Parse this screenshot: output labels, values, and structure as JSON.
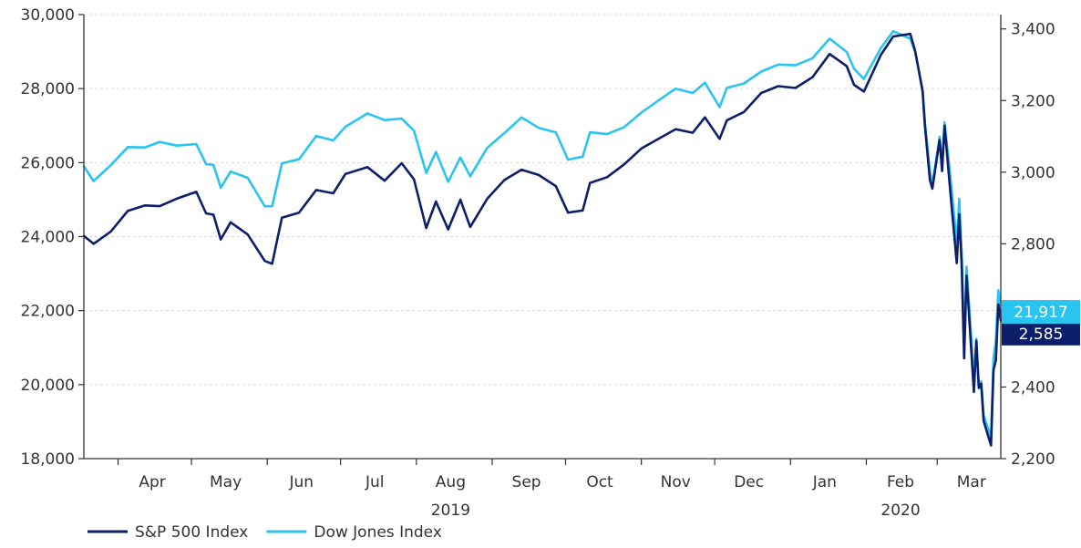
{
  "chart_data": {
    "type": "line",
    "title": "",
    "xlabel": "",
    "left_ylabel": "",
    "right_ylabel": "",
    "x_date_range": [
      "2019-03-18",
      "2020-03-27"
    ],
    "left_axis": {
      "series": "Dow Jones Index",
      "ylim": [
        18000,
        30000
      ],
      "ticks": [
        18000,
        20000,
        22000,
        24000,
        26000,
        28000,
        30000
      ],
      "tick_labels": [
        "18,000",
        "20,000",
        "22,000",
        "24,000",
        "26,000",
        "28,000",
        "30,000"
      ]
    },
    "right_axis": {
      "series": "S&P 500 Index",
      "ylim": [
        2200,
        3440
      ],
      "ticks": [
        2200,
        2400,
        2600,
        2800,
        3000,
        3200,
        3400
      ],
      "tick_labels": [
        "2,200",
        "2,400",
        "2,600",
        "2,800",
        "3,000",
        "3,200",
        "3,400"
      ]
    },
    "month_labels": [
      {
        "label": "Apr",
        "date": "2019-04-15"
      },
      {
        "label": "May",
        "date": "2019-05-15"
      },
      {
        "label": "Jun",
        "date": "2019-06-15"
      },
      {
        "label": "Jul",
        "date": "2019-07-15"
      },
      {
        "label": "Aug",
        "date": "2019-08-15"
      },
      {
        "label": "Sep",
        "date": "2019-09-15"
      },
      {
        "label": "Oct",
        "date": "2019-10-15"
      },
      {
        "label": "Nov",
        "date": "2019-11-15"
      },
      {
        "label": "Dec",
        "date": "2019-12-15"
      },
      {
        "label": "Jan",
        "date": "2020-01-15"
      },
      {
        "label": "Feb",
        "date": "2020-02-15"
      },
      {
        "label": "Mar",
        "date": "2020-03-15"
      }
    ],
    "month_boundaries": [
      "2019-04-01",
      "2019-05-01",
      "2019-06-01",
      "2019-07-01",
      "2019-08-01",
      "2019-09-01",
      "2019-10-01",
      "2019-11-01",
      "2019-12-01",
      "2020-01-01",
      "2020-02-01",
      "2020-03-01"
    ],
    "year_labels": [
      {
        "label": "2019",
        "date": "2019-08-15"
      },
      {
        "label": "2020",
        "date": "2020-02-15"
      }
    ],
    "grid": true,
    "legend_position": "bottom-left",
    "series": [
      {
        "name": "S&P 500 Index",
        "axis": "right",
        "color": "#0d1f6b",
        "end_label": "2,585",
        "points": [
          [
            "2019-03-18",
            2822
          ],
          [
            "2019-03-22",
            2800
          ],
          [
            "2019-03-29",
            2834
          ],
          [
            "2019-04-05",
            2892
          ],
          [
            "2019-04-12",
            2907
          ],
          [
            "2019-04-18",
            2905
          ],
          [
            "2019-04-25",
            2926
          ],
          [
            "2019-05-03",
            2945
          ],
          [
            "2019-05-07",
            2885
          ],
          [
            "2019-05-10",
            2881
          ],
          [
            "2019-05-13",
            2812
          ],
          [
            "2019-05-17",
            2860
          ],
          [
            "2019-05-24",
            2826
          ],
          [
            "2019-05-31",
            2752
          ],
          [
            "2019-06-03",
            2744
          ],
          [
            "2019-06-07",
            2873
          ],
          [
            "2019-06-14",
            2887
          ],
          [
            "2019-06-21",
            2950
          ],
          [
            "2019-06-28",
            2941
          ],
          [
            "2019-07-03",
            2995
          ],
          [
            "2019-07-12",
            3014
          ],
          [
            "2019-07-19",
            2976
          ],
          [
            "2019-07-26",
            3025
          ],
          [
            "2019-07-31",
            2980
          ],
          [
            "2019-08-05",
            2844
          ],
          [
            "2019-08-09",
            2918
          ],
          [
            "2019-08-14",
            2840
          ],
          [
            "2019-08-19",
            2923
          ],
          [
            "2019-08-23",
            2847
          ],
          [
            "2019-08-30",
            2926
          ],
          [
            "2019-09-06",
            2978
          ],
          [
            "2019-09-13",
            3007
          ],
          [
            "2019-09-20",
            2992
          ],
          [
            "2019-09-27",
            2961
          ],
          [
            "2019-10-02",
            2887
          ],
          [
            "2019-10-08",
            2893
          ],
          [
            "2019-10-11",
            2970
          ],
          [
            "2019-10-18",
            2986
          ],
          [
            "2019-10-25",
            3022
          ],
          [
            "2019-11-01",
            3066
          ],
          [
            "2019-11-08",
            3093
          ],
          [
            "2019-11-15",
            3120
          ],
          [
            "2019-11-22",
            3110
          ],
          [
            "2019-11-27",
            3153
          ],
          [
            "2019-12-03",
            3093
          ],
          [
            "2019-12-06",
            3145
          ],
          [
            "2019-12-13",
            3168
          ],
          [
            "2019-12-20",
            3221
          ],
          [
            "2019-12-27",
            3240
          ],
          [
            "2020-01-03",
            3235
          ],
          [
            "2020-01-10",
            3265
          ],
          [
            "2020-01-17",
            3330
          ],
          [
            "2020-01-24",
            3296
          ],
          [
            "2020-01-27",
            3244
          ],
          [
            "2020-01-31",
            3225
          ],
          [
            "2020-02-07",
            3328
          ],
          [
            "2020-02-12",
            3379
          ],
          [
            "2020-02-19",
            3386
          ],
          [
            "2020-02-21",
            3338
          ],
          [
            "2020-02-24",
            3226
          ],
          [
            "2020-02-25",
            3128
          ],
          [
            "2020-02-27",
            2979
          ],
          [
            "2020-02-28",
            2954
          ],
          [
            "2020-03-02",
            3090
          ],
          [
            "2020-03-03",
            3003
          ],
          [
            "2020-03-04",
            3130
          ],
          [
            "2020-03-06",
            2972
          ],
          [
            "2020-03-09",
            2746
          ],
          [
            "2020-03-10",
            2882
          ],
          [
            "2020-03-11",
            2741
          ],
          [
            "2020-03-12",
            2480
          ],
          [
            "2020-03-13",
            2711
          ],
          [
            "2020-03-16",
            2386
          ],
          [
            "2020-03-17",
            2529
          ],
          [
            "2020-03-18",
            2398
          ],
          [
            "2020-03-19",
            2409
          ],
          [
            "2020-03-20",
            2305
          ],
          [
            "2020-03-23",
            2237
          ],
          [
            "2020-03-24",
            2447
          ],
          [
            "2020-03-25",
            2475
          ],
          [
            "2020-03-26",
            2630
          ],
          [
            "2020-03-27",
            2585
          ]
        ]
      },
      {
        "name": "Dow Jones Index",
        "axis": "left",
        "color": "#2ac4f0",
        "end_label": "21,917",
        "points": [
          [
            "2019-03-18",
            25900
          ],
          [
            "2019-03-22",
            25500
          ],
          [
            "2019-03-29",
            25930
          ],
          [
            "2019-04-05",
            26420
          ],
          [
            "2019-04-12",
            26410
          ],
          [
            "2019-04-18",
            26560
          ],
          [
            "2019-04-25",
            26460
          ],
          [
            "2019-05-03",
            26500
          ],
          [
            "2019-05-07",
            25960
          ],
          [
            "2019-05-10",
            25940
          ],
          [
            "2019-05-13",
            25320
          ],
          [
            "2019-05-17",
            25760
          ],
          [
            "2019-05-24",
            25590
          ],
          [
            "2019-05-31",
            24820
          ],
          [
            "2019-06-03",
            24820
          ],
          [
            "2019-06-07",
            25980
          ],
          [
            "2019-06-14",
            26090
          ],
          [
            "2019-06-21",
            26720
          ],
          [
            "2019-06-28",
            26600
          ],
          [
            "2019-07-03",
            26970
          ],
          [
            "2019-07-12",
            27330
          ],
          [
            "2019-07-19",
            27150
          ],
          [
            "2019-07-26",
            27190
          ],
          [
            "2019-07-31",
            26860
          ],
          [
            "2019-08-05",
            25720
          ],
          [
            "2019-08-09",
            26290
          ],
          [
            "2019-08-14",
            25480
          ],
          [
            "2019-08-19",
            26140
          ],
          [
            "2019-08-23",
            25630
          ],
          [
            "2019-08-30",
            26400
          ],
          [
            "2019-09-06",
            26800
          ],
          [
            "2019-09-13",
            27220
          ],
          [
            "2019-09-20",
            26940
          ],
          [
            "2019-09-27",
            26820
          ],
          [
            "2019-10-02",
            26080
          ],
          [
            "2019-10-08",
            26160
          ],
          [
            "2019-10-11",
            26820
          ],
          [
            "2019-10-18",
            26770
          ],
          [
            "2019-10-25",
            26960
          ],
          [
            "2019-11-01",
            27350
          ],
          [
            "2019-11-08",
            27680
          ],
          [
            "2019-11-15",
            28000
          ],
          [
            "2019-11-22",
            27880
          ],
          [
            "2019-11-27",
            28160
          ],
          [
            "2019-12-03",
            27500
          ],
          [
            "2019-12-06",
            28020
          ],
          [
            "2019-12-13",
            28140
          ],
          [
            "2019-12-20",
            28460
          ],
          [
            "2019-12-27",
            28650
          ],
          [
            "2020-01-03",
            28630
          ],
          [
            "2020-01-10",
            28820
          ],
          [
            "2020-01-17",
            29350
          ],
          [
            "2020-01-24",
            28990
          ],
          [
            "2020-01-27",
            28540
          ],
          [
            "2020-01-31",
            28260
          ],
          [
            "2020-02-07",
            29100
          ],
          [
            "2020-02-12",
            29550
          ],
          [
            "2020-02-19",
            29350
          ],
          [
            "2020-02-21",
            28990
          ],
          [
            "2020-02-24",
            27960
          ],
          [
            "2020-02-25",
            27080
          ],
          [
            "2020-02-27",
            25770
          ],
          [
            "2020-02-28",
            25410
          ],
          [
            "2020-03-02",
            26700
          ],
          [
            "2020-03-03",
            25920
          ],
          [
            "2020-03-04",
            27090
          ],
          [
            "2020-03-06",
            25860
          ],
          [
            "2020-03-09",
            23850
          ],
          [
            "2020-03-10",
            25020
          ],
          [
            "2020-03-11",
            23550
          ],
          [
            "2020-03-12",
            21200
          ],
          [
            "2020-03-13",
            23190
          ],
          [
            "2020-03-16",
            20190
          ],
          [
            "2020-03-17",
            21240
          ],
          [
            "2020-03-18",
            19900
          ],
          [
            "2020-03-19",
            20090
          ],
          [
            "2020-03-20",
            19170
          ],
          [
            "2020-03-23",
            18590
          ],
          [
            "2020-03-24",
            20700
          ],
          [
            "2020-03-25",
            21200
          ],
          [
            "2020-03-26",
            22550
          ],
          [
            "2020-03-27",
            21917
          ]
        ]
      }
    ]
  },
  "legend": {
    "items": [
      {
        "label": "S&P 500 Index",
        "color": "#0d1f6b"
      },
      {
        "label": "Dow Jones Index",
        "color": "#2ac4f0"
      }
    ]
  },
  "style": {
    "axis_color": "#333333",
    "grid_color": "#d9d9d9",
    "end_label_text_color": "#ffffff"
  }
}
